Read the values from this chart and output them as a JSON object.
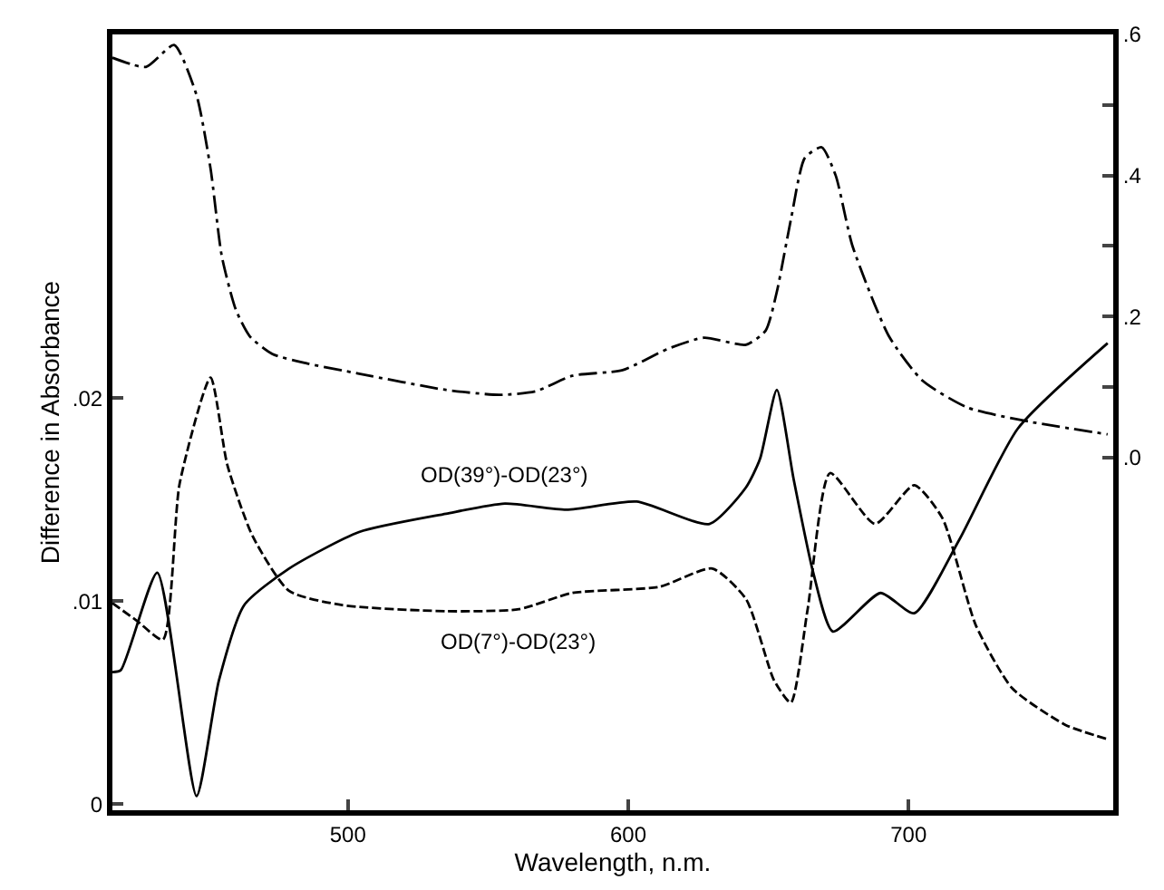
{
  "chart_data": {
    "type": "line",
    "xlabel": "Wavelength, n.m.",
    "ylabel": "Difference in Absorbance",
    "xlim": [
      416,
      773
    ],
    "xticks": [
      500,
      600,
      700
    ],
    "ylim": [
      -0.0003,
      0.0379
    ],
    "yticks": [
      {
        "value": 0,
        "label": "0"
      },
      {
        "value": 0.01,
        "label": ".01"
      },
      {
        "value": 0.02,
        "label": ".02"
      }
    ],
    "y2lim": [
      -0.5,
      0.6
    ],
    "y2ticks": [
      {
        "value": 0,
        "label": ".0"
      },
      {
        "value": 0.1,
        "label": null
      },
      {
        "value": 0.2,
        "label": ".2"
      },
      {
        "value": 0.3,
        "label": null
      },
      {
        "value": 0.4,
        "label": ".4"
      },
      {
        "value": 0.5,
        "label": null
      },
      {
        "value": 0.6,
        "label": ".6"
      }
    ],
    "legend": false,
    "marker": "none",
    "series": [
      {
        "color": "#000000",
        "line_style": "dashdot",
        "axis": "y2",
        "x": [
          416,
          428,
          438,
          446,
          451,
          455,
          460,
          465,
          473,
          485,
          504,
          535,
          554,
          567,
          580,
          598,
          614,
          627,
          642,
          649,
          653,
          658,
          663,
          669,
          674,
          680,
          693,
          705,
          721,
          743,
          771
        ],
        "values": [
          0.567,
          0.554,
          0.585,
          0.514,
          0.41,
          0.286,
          0.21,
          0.172,
          0.147,
          0.134,
          0.119,
          0.096,
          0.089,
          0.094,
          0.116,
          0.124,
          0.154,
          0.17,
          0.16,
          0.18,
          0.235,
          0.337,
          0.425,
          0.44,
          0.4,
          0.3,
          0.172,
          0.109,
          0.071,
          0.051,
          0.033
        ]
      },
      {
        "color": "#000000",
        "line_style": "solid",
        "x": [
          416,
          419,
          432,
          446,
          454,
          463,
          479,
          504,
          535,
          556,
          578,
          603,
          629,
          642,
          647,
          653,
          659,
          666,
          673,
          690,
          702,
          718,
          739,
          771
        ],
        "values": [
          0.0065,
          0.0066,
          0.0114,
          0.0004,
          0.0061,
          0.0098,
          0.0116,
          0.0134,
          0.0143,
          0.0148,
          0.0145,
          0.0149,
          0.0138,
          0.0156,
          0.017,
          0.0204,
          0.016,
          0.0114,
          0.0085,
          0.0104,
          0.0094,
          0.013,
          0.0185,
          0.0227
        ]
      },
      {
        "color": "#000000",
        "line_style": "dashed",
        "x": [
          416,
          425,
          434,
          440,
          451,
          457,
          466,
          479,
          498,
          535,
          561,
          580,
          611,
          630,
          642,
          652,
          658,
          664,
          672,
          688,
          702,
          712,
          724,
          737,
          756,
          771
        ],
        "values": [
          0.0099,
          0.009,
          0.0081,
          0.0158,
          0.021,
          0.0167,
          0.0132,
          0.0105,
          0.0098,
          0.0095,
          0.0096,
          0.0104,
          0.0107,
          0.0116,
          0.0101,
          0.0061,
          0.005,
          0.0096,
          0.0163,
          0.0138,
          0.0157,
          0.0141,
          0.0088,
          0.0057,
          0.0039,
          0.0032
        ]
      }
    ],
    "annotations": [
      {
        "text": "OD(39°)-OD(23°)",
        "x": 556,
        "y": 0.0148
      },
      {
        "text": "OD(7°)-OD(23°)",
        "x": 561,
        "y": 0.0096
      }
    ]
  }
}
